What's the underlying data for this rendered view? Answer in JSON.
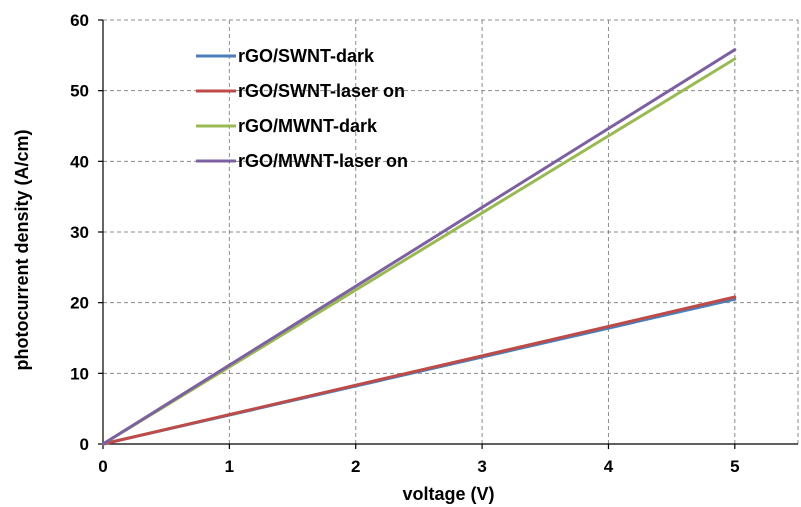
{
  "chart_data": {
    "type": "line",
    "title": "",
    "xlabel": "voltage  (V)",
    "ylabel": "photocurrent  density (A/cm)",
    "xlim": [
      0,
      5.5
    ],
    "ylim": [
      0,
      60
    ],
    "xticks": [
      0,
      1,
      2,
      3,
      4,
      5
    ],
    "yticks": [
      0,
      10,
      20,
      30,
      40,
      50,
      60
    ],
    "xtick_labels": [
      "0",
      "1",
      "2",
      "3",
      "4",
      "5"
    ],
    "ytick_labels": [
      "0",
      "10",
      "20",
      "30",
      "40",
      "50",
      "60"
    ],
    "grid": true,
    "legend_position": "top-left",
    "series": [
      {
        "name": "rGO/SWNT-dark",
        "color": "#4a7ebb",
        "x": [
          0,
          1,
          2,
          3,
          4,
          5
        ],
        "y": [
          0,
          4.1,
          8.2,
          12.3,
          16.4,
          20.5
        ]
      },
      {
        "name": "rGO/SWNT-laser on",
        "color": "#be4b48",
        "x": [
          0,
          1,
          2,
          3,
          4,
          5
        ],
        "y": [
          0,
          4.16,
          8.32,
          12.48,
          16.64,
          20.8
        ]
      },
      {
        "name": "rGO/MWNT-dark",
        "color": "#98b954",
        "x": [
          0,
          1,
          2,
          3,
          4,
          5
        ],
        "y": [
          0,
          10.9,
          21.8,
          32.7,
          43.6,
          54.5
        ]
      },
      {
        "name": "rGO/MWNT-laser on",
        "color": "#7d60a0",
        "x": [
          0,
          1,
          2,
          3,
          4,
          5
        ],
        "y": [
          0,
          11.16,
          22.32,
          33.48,
          44.64,
          55.8
        ]
      }
    ]
  }
}
